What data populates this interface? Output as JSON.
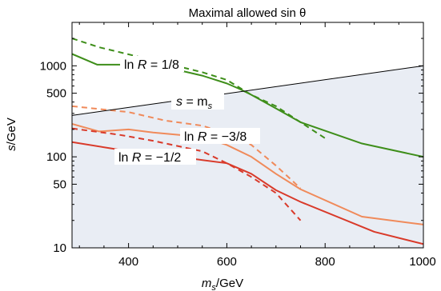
{
  "chart_data": {
    "type": "line",
    "title": "Maximal allowed sin θ",
    "xlabel": {
      "symbol": "m",
      "sub": "s",
      "unit": "/GeV"
    },
    "ylabel": {
      "symbol": "s",
      "unit": "/GeV"
    },
    "xscale": "linear",
    "yscale": "log",
    "xlim": [
      285,
      1000
    ],
    "ylim": [
      10,
      3000
    ],
    "x_ticks": [
      400,
      600,
      800,
      1000
    ],
    "y_ticks": [
      10,
      50,
      100,
      500,
      1000
    ],
    "grid": false,
    "legend": "none",
    "region": {
      "description": "shaded area below line s = m_s",
      "color": "#e9edf4"
    },
    "reference_line": {
      "label_symbol": "s",
      "label_rest": " = m",
      "label_sub": "s",
      "color": "#000000",
      "x": [
        285,
        1000
      ],
      "y": [
        285,
        1000
      ]
    },
    "annotations": [
      {
        "prefix": "ln ",
        "var": "R",
        "value": " = 1/8",
        "color": "#3e8e1a"
      },
      {
        "prefix": "ln ",
        "var": "R",
        "value": " = −3/8",
        "color": "#f08a5a"
      },
      {
        "prefix": "ln ",
        "var": "R",
        "value": " = −1/2",
        "color": "#d93a2a"
      }
    ],
    "series": [
      {
        "color": "#3e8e1a",
        "style": "solid",
        "x": [
          285,
          336,
          430,
          500,
          550,
          600,
          625,
          650,
          700,
          750,
          875,
          1000
        ],
        "y": [
          1350,
          1030,
          1030,
          900,
          780,
          640,
          560,
          480,
          340,
          240,
          140,
          100
        ]
      },
      {
        "color": "#3e8e1a",
        "style": "dashed",
        "x": [
          285,
          340,
          450,
          550,
          600,
          650,
          700,
          750,
          800
        ],
        "y": [
          2000,
          1600,
          1150,
          850,
          700,
          480,
          360,
          240,
          160
        ]
      },
      {
        "color": "#f08a5a",
        "style": "solid",
        "x": [
          285,
          340,
          400,
          450,
          550,
          600,
          650,
          700,
          750,
          875,
          1000
        ],
        "y": [
          230,
          190,
          200,
          185,
          165,
          135,
          100,
          65,
          44,
          22,
          18
        ]
      },
      {
        "color": "#f08a5a",
        "style": "dashed",
        "x": [
          285,
          400,
          475,
          550,
          600,
          650,
          700,
          750
        ],
        "y": [
          360,
          310,
          250,
          220,
          180,
          135,
          80,
          45
        ]
      },
      {
        "color": "#d93a2a",
        "style": "solid",
        "x": [
          285,
          380,
          450,
          500,
          600,
          650,
          700,
          750,
          900,
          1000
        ],
        "y": [
          145,
          120,
          110,
          100,
          85,
          65,
          43,
          32,
          15,
          11
        ]
      },
      {
        "color": "#d93a2a",
        "style": "dashed",
        "x": [
          285,
          380,
          450,
          550,
          600,
          650,
          700,
          750
        ],
        "y": [
          205,
          175,
          150,
          115,
          85,
          60,
          40,
          20
        ]
      }
    ]
  }
}
